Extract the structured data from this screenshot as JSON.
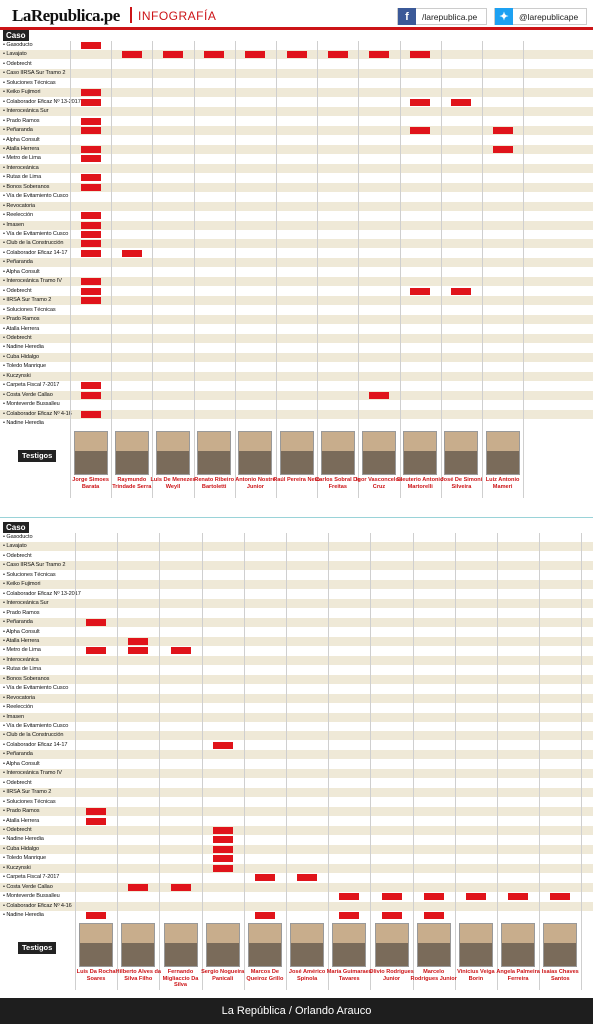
{
  "header": {
    "logo": "LaRepublica.pe",
    "section": "INFOGRAFÍA",
    "facebook": "/larepublica.pe",
    "twitter": "@larepublicape",
    "facebook_icon": "facebook-icon",
    "twitter_icon": "twitter-icon",
    "accent_color": "#cc1417"
  },
  "caso_label": "Caso",
  "testigos_label": "Testigos",
  "footer": "La República / Orlando Arauco",
  "grid1": {
    "rows": [
      "Gasoducto",
      "Lavajato",
      "Odebrecht",
      "Caso IIRSA Sur Tramo 2",
      "Soluciones Técnicas",
      "Keiko Fujimori",
      "Colaborador Eficaz Nº 13-2017",
      "Interoceánica Sur",
      "Prado Ramos",
      "Peñaranda",
      "Alpha Consult",
      "Atalla Herrera",
      "Metro de Lima",
      "Interoceánica",
      "Rutas de Lima",
      "Bonos Soberanos",
      "Vía de Evitamiento Cusco",
      "Revocatoria",
      "Reelección",
      "Imasen",
      "Vía de Evitamiento Cusco",
      "Club de la Construcción",
      "Colaborador Eficaz 14-17",
      "Peñaranda",
      "Alpha Consult",
      "Interoceánica Tramo IV",
      "Odebrecht",
      "IIRSA Sur Tramo 2",
      "Soluciones Técnicas",
      "Prado Ramos",
      "Atalla Herrera",
      "Odebrecht",
      "Nadine Heredia",
      "Cuba Hidalgo",
      "Toledo Manrique",
      "Kuczynski",
      "Carpeta Fiscal 7-2017",
      "Costa Verde Callao",
      "Monteverde Bussalleu",
      "Colaborador Eficaz Nº 4-16",
      "Nadine Heredia"
    ],
    "witnesses": [
      "Jorge Simoes Barata",
      "Raymundo Trindade Serra",
      "Luis De Menezes Weyll",
      "Renato Ribeiro Bartoletti",
      "Antonio Nostre Junior",
      "Raúl Pereira Neto",
      "Carlos Sobral De Freitas",
      "Igor Vasconcelos Cruz",
      "Eleuterio Antonio Martorelli",
      "José De Simoni Silveira",
      "Luiz Antonio Mameri"
    ],
    "marks": [
      [
        0,
        0
      ],
      [
        1,
        1
      ],
      [
        1,
        2
      ],
      [
        1,
        3
      ],
      [
        1,
        4
      ],
      [
        1,
        5
      ],
      [
        1,
        6
      ],
      [
        1,
        7
      ],
      [
        1,
        8
      ],
      [
        5,
        0
      ],
      [
        6,
        0
      ],
      [
        6,
        8
      ],
      [
        6,
        9
      ],
      [
        8,
        0
      ],
      [
        9,
        0
      ],
      [
        9,
        8
      ],
      [
        9,
        10
      ],
      [
        11,
        0
      ],
      [
        11,
        10
      ],
      [
        12,
        0
      ],
      [
        14,
        0
      ],
      [
        15,
        0
      ],
      [
        18,
        0
      ],
      [
        19,
        0
      ],
      [
        20,
        0
      ],
      [
        21,
        0
      ],
      [
        22,
        0
      ],
      [
        22,
        1
      ],
      [
        25,
        0
      ],
      [
        26,
        0
      ],
      [
        26,
        8
      ],
      [
        26,
        9
      ],
      [
        27,
        0
      ],
      [
        36,
        0
      ],
      [
        37,
        0
      ],
      [
        37,
        7
      ],
      [
        39,
        0
      ]
    ]
  },
  "grid2": {
    "rows": [
      "Gasoducto",
      "Lavajato",
      "Odebrecht",
      "Caso IIRSA Sur Tramo 2",
      "Soluciones Técnicas",
      "Keiko Fujimori",
      "Colaborador Eficaz Nº 13-2017",
      "Interoceánica Sur",
      "Prado Ramos",
      "Peñaranda",
      "Alpha Consult",
      "Atalla Herrera",
      "Metro de Lima",
      "Interoceánica",
      "Rutas de Lima",
      "Bonos Soberanos",
      "Vía de Evitamiento Cusco",
      "Revocatoria",
      "Reelección",
      "Imasen",
      "Vía de Evitamiento Cusco",
      "Club de la Construcción",
      "Colaborador Eficaz 14-17",
      "Peñaranda",
      "Alpha Consult",
      "Interoceánica Tramo IV",
      "Odebrecht",
      "IIRSA Sur Tramo 2",
      "Soluciones Técnicas",
      "Prado Ramos",
      "Atalla Herrera",
      "Odebrecht",
      "Nadine Heredia",
      "Cuba Hidalgo",
      "Toledo Manrique",
      "Kuczynski",
      "Carpeta Fiscal 7-2017",
      "Costa Verde Callao",
      "Monteverde Bussalleu",
      "Colaborador Eficaz Nº 4-16",
      "Nadine Heredia"
    ],
    "witnesses": [
      "Luis Da Rocha Soares",
      "Hilberto Alves da Silva Filho",
      "Fernando Migliaccio Da Silva",
      "Sergio Nogueira Panicali",
      "Marcos De Queiroz Grillo",
      "José Américo Spinola",
      "María Guimaraes Tavares",
      "Olivio Rodrigues Junior",
      "Marcelo Rodrigues Junior",
      "Vinicius Veiga Borin",
      "Angela Palmeira Ferreira",
      "Isaías Chaves Santos"
    ],
    "marks": [
      [
        9,
        0
      ],
      [
        11,
        1
      ],
      [
        12,
        0
      ],
      [
        12,
        1
      ],
      [
        12,
        2
      ],
      [
        22,
        3
      ],
      [
        29,
        0
      ],
      [
        30,
        0
      ],
      [
        31,
        3
      ],
      [
        32,
        3
      ],
      [
        33,
        3
      ],
      [
        34,
        3
      ],
      [
        35,
        3
      ],
      [
        36,
        4
      ],
      [
        36,
        5
      ],
      [
        37,
        1
      ],
      [
        37,
        2
      ],
      [
        38,
        6
      ],
      [
        38,
        7
      ],
      [
        38,
        8
      ],
      [
        38,
        9
      ],
      [
        38,
        10
      ],
      [
        38,
        11
      ],
      [
        40,
        0
      ],
      [
        40,
        4
      ],
      [
        40,
        6
      ],
      [
        40,
        7
      ],
      [
        40,
        8
      ]
    ]
  }
}
